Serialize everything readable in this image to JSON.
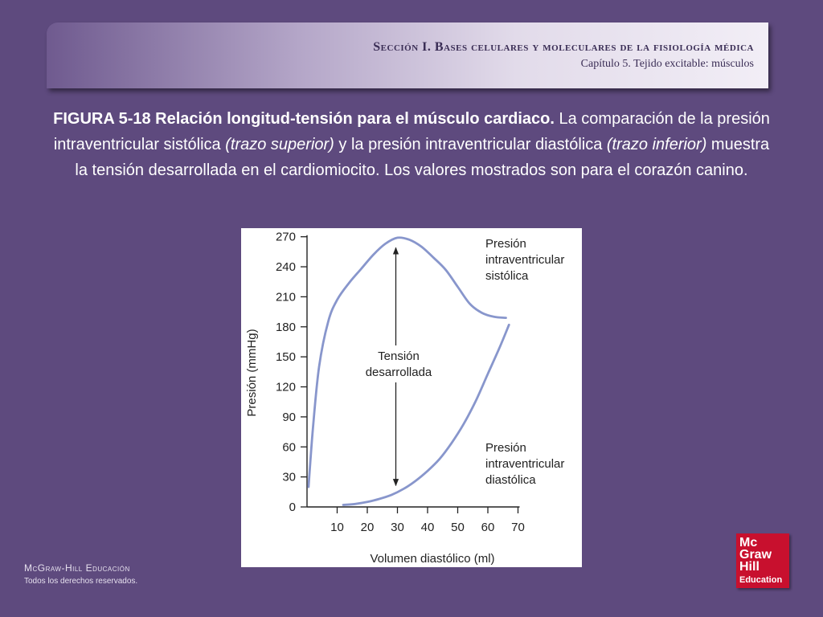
{
  "header": {
    "section": "Sección I.  Bases celulares y moleculares de la fisiología médica",
    "chapter": "Capítulo 5.  Tejido excitable: músculos"
  },
  "caption": {
    "bold": "FIGURA 5-18 Relación longitud-tensión para el músculo cardiaco.",
    "t1": " La comparación de la presión intraventricular sistólica ",
    "i1": "(trazo superior)",
    "t2": " y la presión intraventricular diastólica ",
    "i2": "(trazo inferior)",
    "t3": " muestra la tensión desarrollada en el cardiomiocito. Los valores mostrados son para el corazón canino."
  },
  "chart_data": {
    "type": "line",
    "xlabel": "Volumen diastólico (ml)",
    "ylabel": "Presión (mmHg)",
    "xlim": [
      0,
      70
    ],
    "ylim": [
      0,
      270
    ],
    "x_ticks": [
      10,
      20,
      30,
      40,
      50,
      60,
      70
    ],
    "y_ticks": [
      0,
      30,
      60,
      90,
      120,
      150,
      180,
      210,
      240,
      270
    ],
    "grid": false,
    "series": [
      {
        "name": "Presión intraventricular sistólica",
        "label_lines": [
          "Presión",
          "intraventricular",
          "sistólica"
        ],
        "color": "#8896cc",
        "x": [
          0.5,
          2,
          4,
          7,
          10,
          14,
          18,
          22,
          26,
          30,
          34,
          38,
          42,
          46,
          50,
          54,
          58,
          62,
          66
        ],
        "y": [
          20,
          80,
          140,
          185,
          207,
          224,
          238,
          252,
          263,
          269,
          267,
          260,
          249,
          237,
          220,
          203,
          194,
          190,
          189
        ]
      },
      {
        "name": "Presión intraventricular diastólica",
        "label_lines": [
          "Presión",
          "intraventricular",
          "diastólica"
        ],
        "color": "#8896cc",
        "x": [
          12,
          16,
          20,
          24,
          28,
          32,
          36,
          40,
          44,
          48,
          52,
          56,
          60,
          64,
          67
        ],
        "y": [
          2,
          3,
          5,
          8,
          12,
          18,
          26,
          36,
          48,
          64,
          83,
          106,
          133,
          160,
          182
        ]
      }
    ],
    "annotations": [
      {
        "label_lines": [
          "Tensión",
          "desarrollada"
        ],
        "x": 30,
        "y_from": 15,
        "y_to": 267,
        "type": "double-arrow"
      }
    ]
  },
  "footer": {
    "brand": "McGraw-Hill Educación",
    "rights": "Todos los derechos reservados."
  },
  "logo": {
    "line1": "Mc",
    "line2": "Graw",
    "line3": "Hill",
    "line4": "Education",
    "color": "#c8102e"
  }
}
